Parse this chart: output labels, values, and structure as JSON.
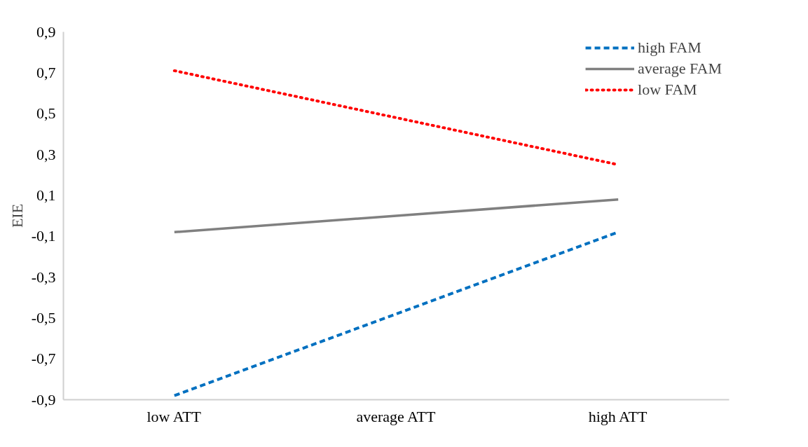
{
  "chart_data": {
    "type": "line",
    "ylabel": "EIE",
    "categories": [
      "low ATT",
      "average ATT",
      "high ATT"
    ],
    "series": [
      {
        "name": "high FAM",
        "color": "#0070c0",
        "line_style": "dashed",
        "values": [
          -0.88,
          -0.48,
          -0.08
        ]
      },
      {
        "name": "average FAM",
        "color": "#808080",
        "line_style": "solid",
        "values": [
          -0.08,
          0.0,
          0.08
        ]
      },
      {
        "name": "low FAM",
        "color": "#ff0000",
        "line_style": "dotted",
        "values": [
          0.71,
          0.48,
          0.25
        ]
      }
    ],
    "ylim": [
      -0.9,
      0.9
    ],
    "yticks": [
      {
        "value": -0.9,
        "label": "-0,9"
      },
      {
        "value": -0.7,
        "label": "-0,7"
      },
      {
        "value": -0.5,
        "label": "-0,5"
      },
      {
        "value": -0.3,
        "label": "-0,3"
      },
      {
        "value": -0.1,
        "label": "-0,1"
      },
      {
        "value": 0.1,
        "label": "0,1"
      },
      {
        "value": 0.3,
        "label": "0,3"
      },
      {
        "value": 0.5,
        "label": "0,5"
      },
      {
        "value": 0.7,
        "label": "0,7"
      },
      {
        "value": 0.9,
        "label": "0,9"
      }
    ],
    "grid": false,
    "legend": "top right",
    "marker": "none"
  }
}
